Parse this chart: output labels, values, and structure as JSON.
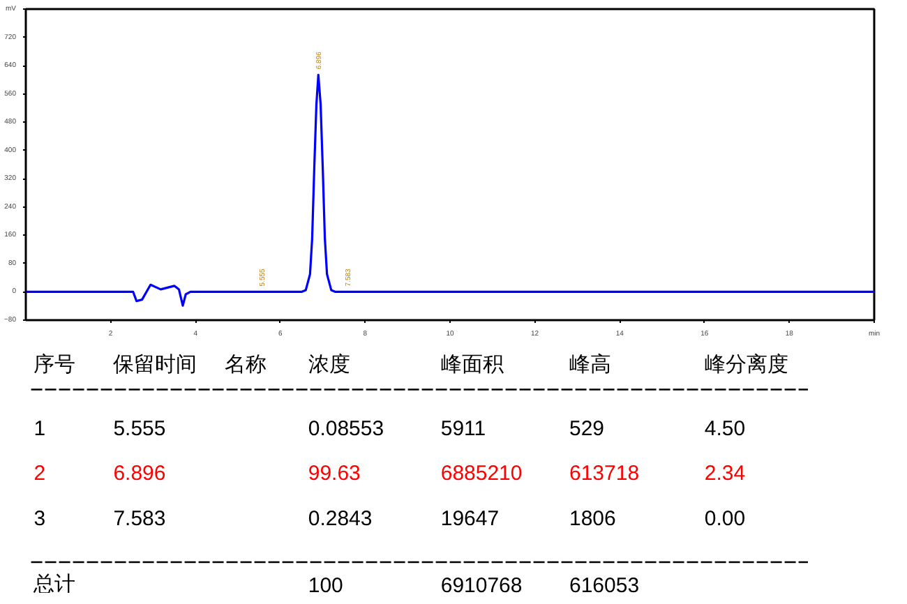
{
  "chart_data": [
    {
      "type": "line",
      "xlim": [
        0,
        20
      ],
      "ylim": [
        -80,
        800
      ],
      "xticks": [
        2,
        4,
        6,
        8,
        10,
        12,
        14,
        16,
        18,
        {
          "value": 20,
          "label": "min"
        }
      ],
      "yticks": [
        -80,
        0,
        80,
        160,
        240,
        320,
        400,
        480,
        560,
        640,
        720,
        {
          "value": 800,
          "label": "mV"
        }
      ],
      "x": [
        0,
        2.53,
        2.61,
        2.74,
        2.94,
        3.18,
        3.5,
        3.61,
        3.7,
        3.77,
        3.88,
        5.4,
        5.555,
        5.7,
        6.5,
        6.6,
        6.7,
        6.75,
        6.8,
        6.85,
        6.896,
        6.95,
        7.0,
        7.05,
        7.1,
        7.2,
        7.3,
        7.5,
        7.583,
        7.7,
        20
      ],
      "series": [
        {
          "color": "#0000ff",
          "values": [
            0,
            0,
            -26,
            -22,
            20,
            7,
            17,
            7,
            -39,
            -7,
            0,
            0,
            0,
            0,
            0,
            5,
            50,
            150,
            350,
            530,
            614,
            530,
            350,
            150,
            50,
            5,
            0,
            0,
            0,
            0,
            0
          ]
        }
      ],
      "annotations": [
        {
          "text": "5.555",
          "x": 5.555,
          "y": 0
        },
        {
          "text": "6.896",
          "x": 6.896,
          "y": 614
        },
        {
          "text": "7.583",
          "x": 7.583,
          "y": 0
        }
      ],
      "grid": false,
      "marker": "none",
      "line_style": "solid"
    },
    {
      "type": "other",
      "categories": [
        "序号",
        "保留时间",
        "名称",
        "浓度",
        "峰面积",
        "峰高",
        "峰分离度"
      ],
      "cell_labels": [
        [
          "1",
          "5.555",
          null,
          "0.08553",
          "5911",
          "529",
          "4.50"
        ],
        [
          "2",
          "6.896",
          null,
          "99.63",
          "6885210",
          "613718",
          "2.34"
        ],
        [
          "3",
          "7.583",
          null,
          "0.2843",
          "19647",
          "1806",
          "0.00"
        ],
        [
          "总计",
          null,
          null,
          "100",
          "6910768",
          "616053",
          null
        ]
      ],
      "colors": [
        "#000000",
        "#ff0000",
        "#000000",
        "#000000"
      ]
    }
  ]
}
